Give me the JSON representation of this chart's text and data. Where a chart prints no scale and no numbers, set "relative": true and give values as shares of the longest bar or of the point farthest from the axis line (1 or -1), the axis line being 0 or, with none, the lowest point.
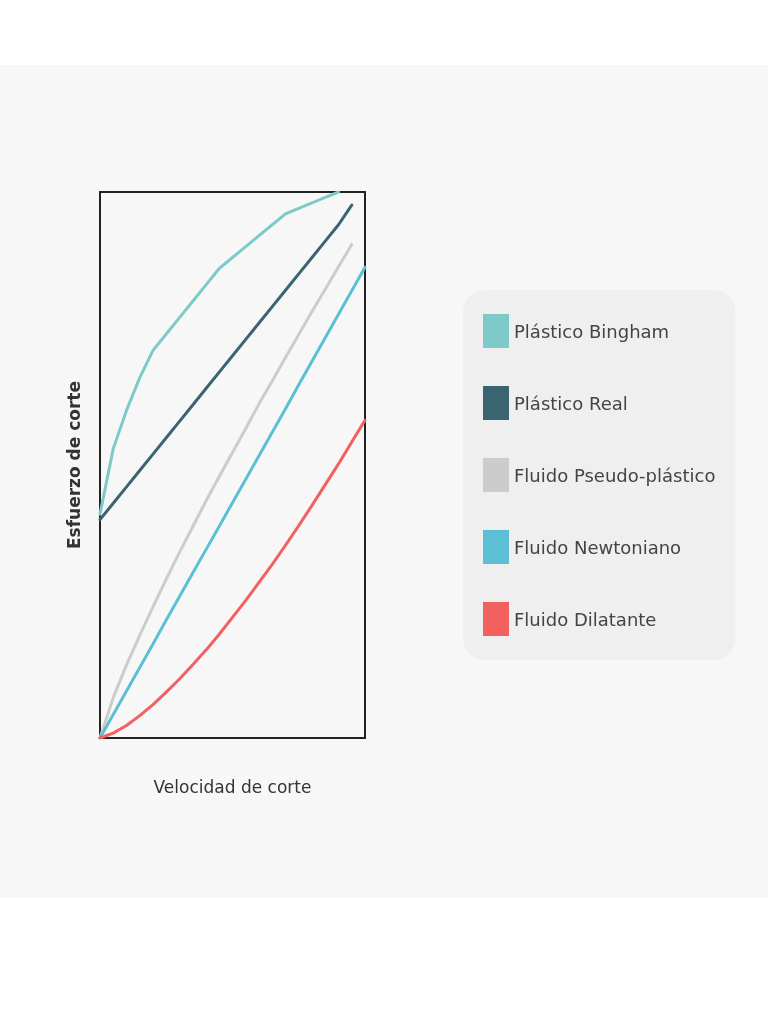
{
  "chart_data": {
    "type": "line",
    "relative": true,
    "xlabel": "Velocidad de corte",
    "ylabel": "Esfuerzo de corte",
    "legend": "right",
    "marker": "none",
    "line_style": "solid",
    "grid": false,
    "categories": [
      null,
      null,
      null,
      null,
      null,
      null,
      null,
      null,
      null,
      null,
      null,
      null,
      null,
      null,
      null,
      null,
      null,
      null,
      null,
      null,
      null
    ],
    "series": [
      {
        "name": "Plástico Bingham",
        "color": "#7ecac8",
        "values": [
          0.41,
          0.53,
          0.6,
          0.66,
          0.71,
          0.74,
          0.77,
          0.8,
          0.83,
          0.86,
          0.88,
          0.9,
          0.92,
          0.94,
          0.96,
          0.97,
          0.98,
          0.99,
          1.0,
          null,
          null
        ]
      },
      {
        "name": "Plástico Real",
        "color": "#3a6470",
        "values": [
          0.4,
          0.43,
          0.46,
          0.49,
          0.52,
          0.55,
          0.58,
          0.61,
          0.64,
          0.67,
          0.7,
          0.73,
          0.76,
          0.79,
          0.82,
          0.85,
          0.88,
          0.91,
          0.94,
          0.976,
          null
        ]
      },
      {
        "name": "Fluido Pseudo-plástico",
        "color": "#cccccc",
        "values": [
          0,
          0.074,
          0.134,
          0.188,
          0.24,
          0.291,
          0.34,
          0.387,
          0.434,
          0.479,
          0.523,
          0.567,
          0.612,
          0.654,
          0.697,
          0.739,
          0.781,
          0.822,
          0.863,
          0.904,
          null
        ]
      },
      {
        "name": "Fluido Newtoniano",
        "color": "#5bc0d6",
        "values": [
          0,
          0.043,
          0.086,
          0.129,
          0.172,
          0.216,
          0.259,
          0.302,
          0.345,
          0.388,
          0.431,
          0.474,
          0.517,
          0.56,
          0.603,
          0.647,
          0.69,
          0.733,
          0.776,
          0.819,
          0.862
        ]
      },
      {
        "name": "Fluido Dilatante",
        "color": "#f26060",
        "values": [
          0,
          0.009,
          0.023,
          0.041,
          0.061,
          0.084,
          0.108,
          0.134,
          0.161,
          0.19,
          0.221,
          0.252,
          0.285,
          0.318,
          0.353,
          0.389,
          0.426,
          0.464,
          0.502,
          0.542,
          0.582
        ]
      }
    ]
  }
}
